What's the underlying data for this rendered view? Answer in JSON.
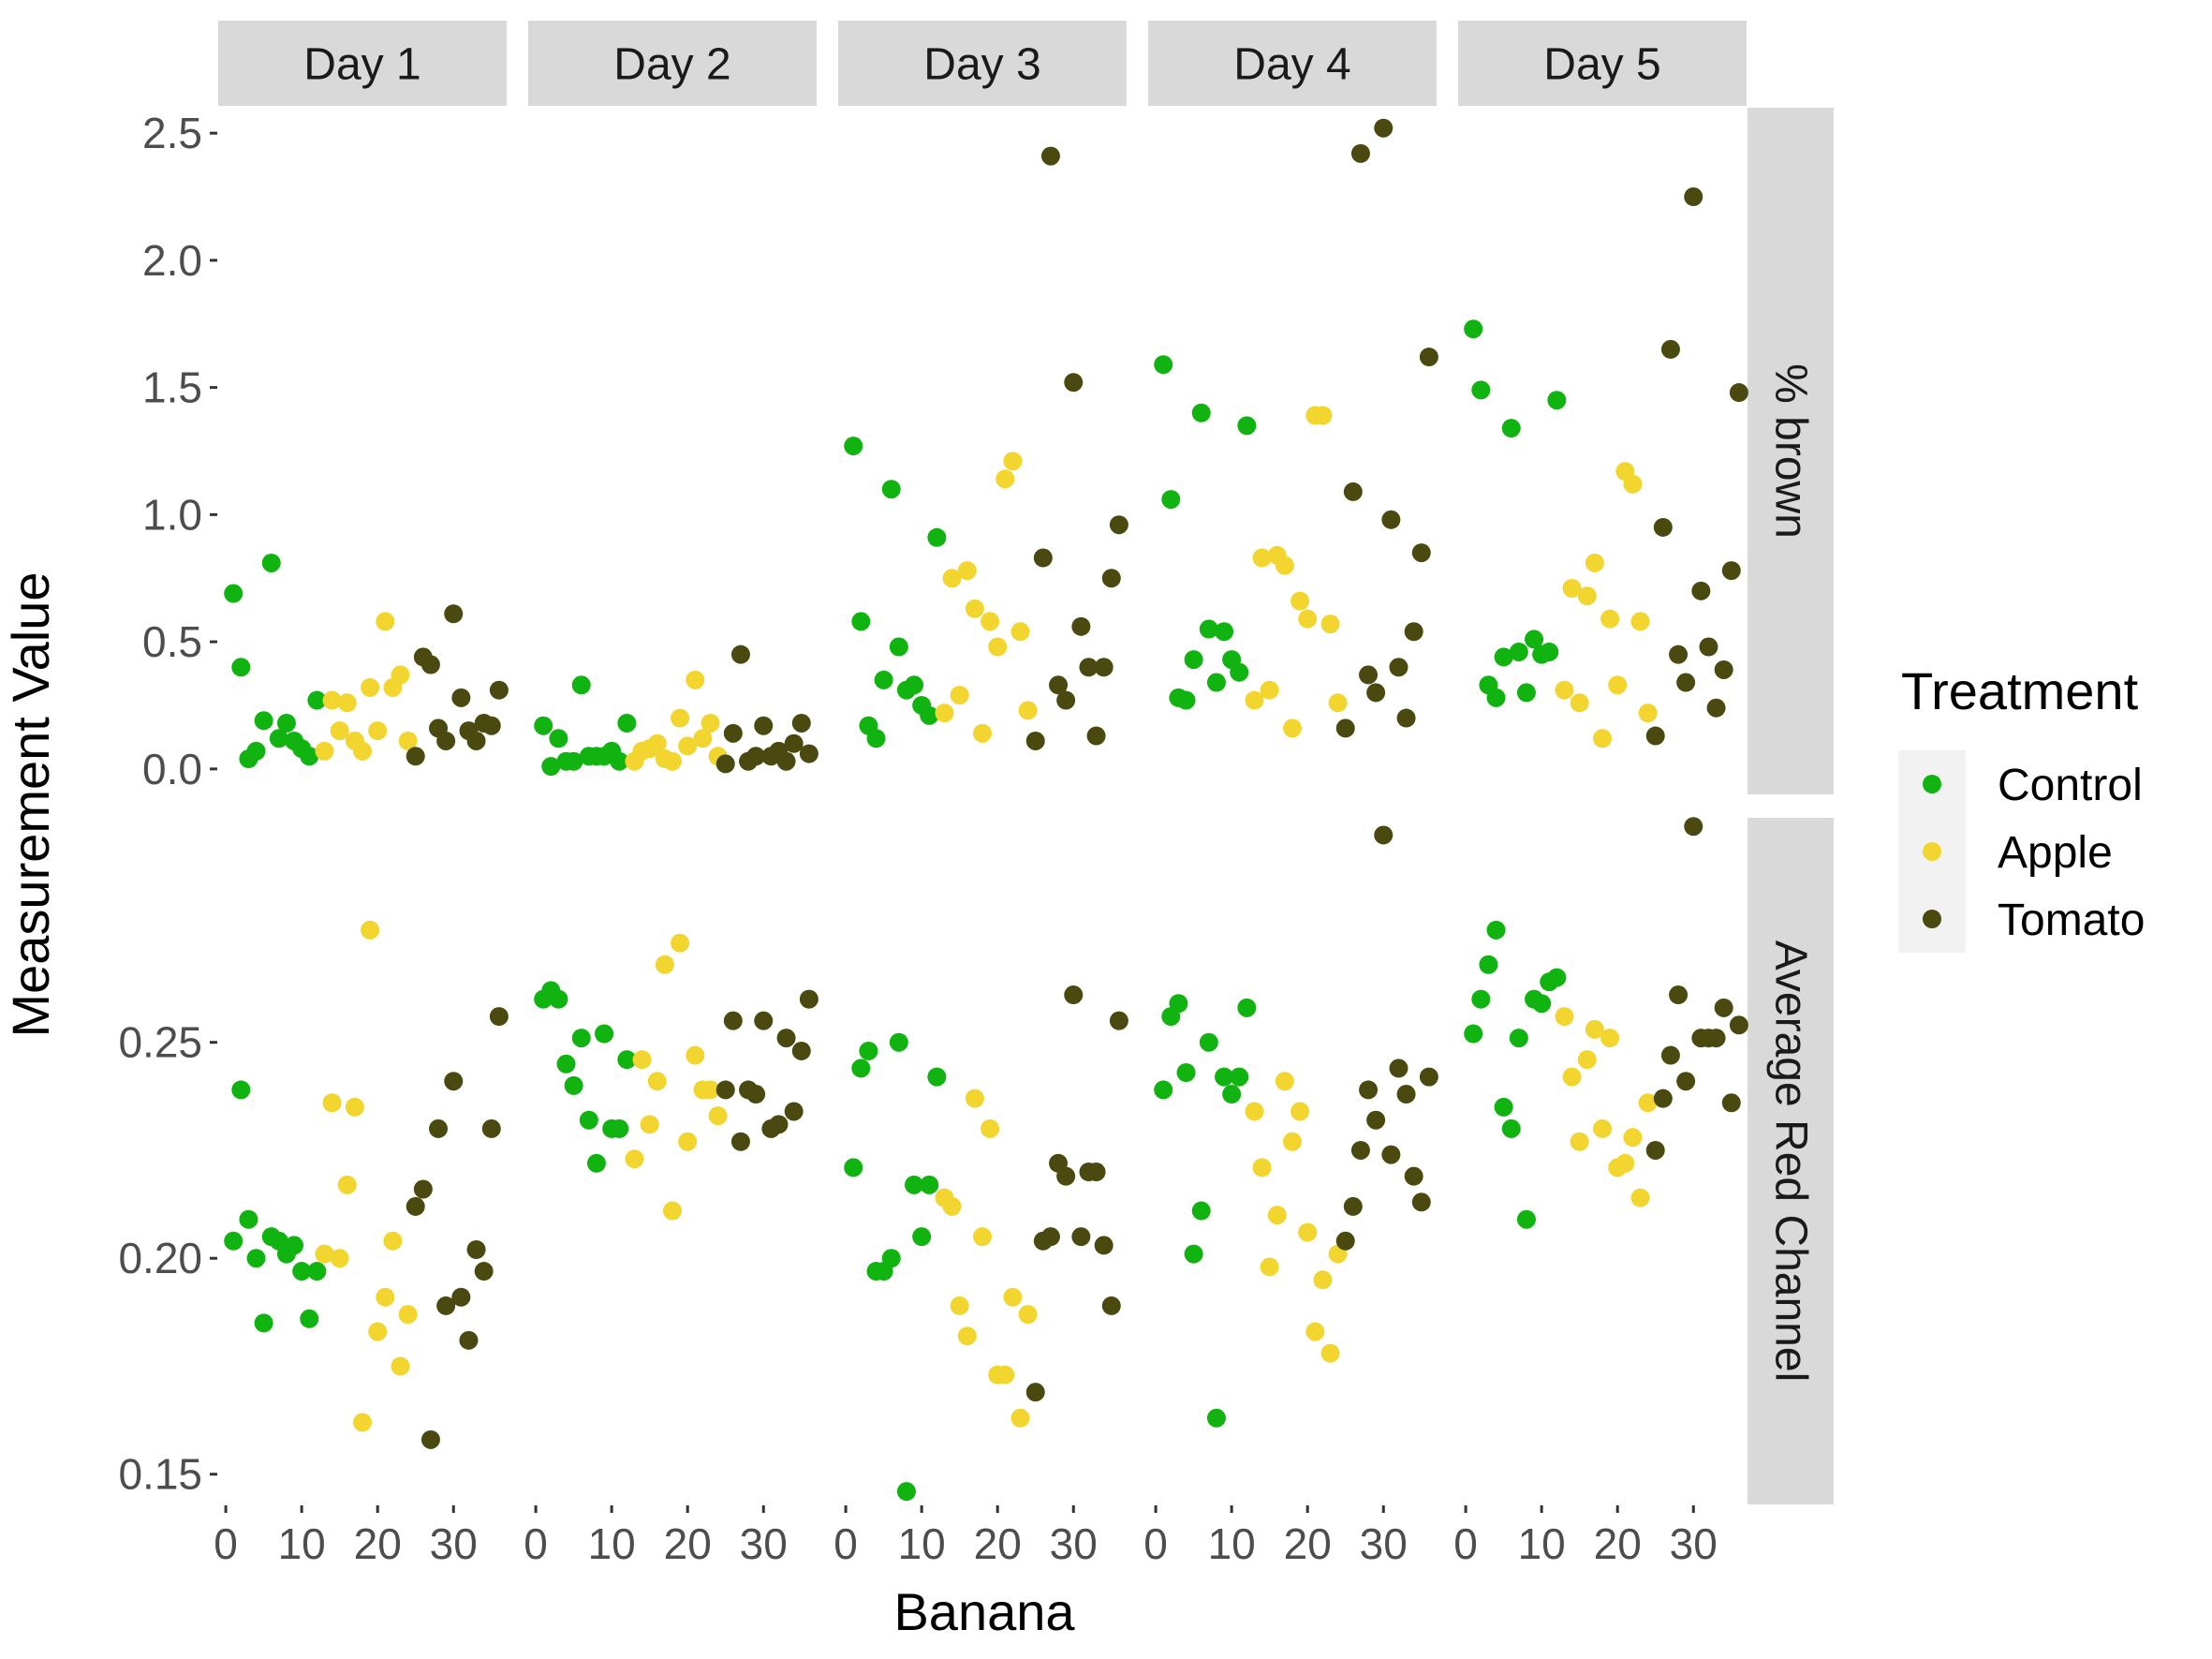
{
  "chart_data": {
    "type": "scatter",
    "xlabel": "Banana",
    "ylabel": "Measurement Value",
    "colors": {
      "Control": "#11b311",
      "Apple": "#f2d52e",
      "Tomato": "#4a4a10"
    },
    "x_ticks": [
      "0",
      "10",
      "20",
      "30"
    ],
    "xlim": [
      -1,
      37
    ],
    "columns": [
      "Day 1",
      "Day 2",
      "Day 3",
      "Day 4",
      "Day 5"
    ],
    "rows": [
      {
        "label": "% brown",
        "ylim": [
          -0.1,
          2.6
        ],
        "ticks": [
          0.0,
          0.5,
          1.0,
          1.5,
          2.0,
          2.5
        ],
        "tick_labels": [
          "0.0",
          "0.5",
          "1.0",
          "1.5",
          "2.0",
          "2.5"
        ]
      },
      {
        "label": "Average Red Channel",
        "ylim": [
          0.143,
          0.302
        ],
        "ticks": [
          0.15,
          0.2,
          0.25
        ],
        "tick_labels": [
          "0.15",
          "0.20",
          "0.25"
        ]
      }
    ],
    "legend": {
      "title": "Treatment",
      "position": "right",
      "entries": [
        "Control",
        "Apple",
        "Tomato"
      ]
    },
    "panels": [
      {
        "row": 0,
        "col": 0,
        "series": [
          {
            "name": "Control",
            "x": [
              1,
              2,
              3,
              4,
              5,
              6,
              7,
              8,
              9,
              10,
              11,
              12
            ],
            "y": [
              0.69,
              0.4,
              0.04,
              0.07,
              0.19,
              0.81,
              0.12,
              0.18,
              0.11,
              0.08,
              0.05,
              0.27
            ]
          },
          {
            "name": "Apple",
            "x": [
              13,
              14,
              15,
              16,
              17,
              18,
              19,
              20,
              21,
              22,
              23,
              24
            ],
            "y": [
              0.07,
              0.27,
              0.15,
              0.26,
              0.11,
              0.07,
              0.32,
              0.15,
              0.58,
              0.32,
              0.37,
              0.11
            ]
          },
          {
            "name": "Tomato",
            "x": [
              25,
              26,
              27,
              28,
              29,
              30,
              31,
              32,
              33,
              34,
              35,
              36
            ],
            "y": [
              0.05,
              0.44,
              0.41,
              0.16,
              0.11,
              0.61,
              0.28,
              0.15,
              0.11,
              0.18,
              0.17,
              0.31
            ]
          }
        ]
      },
      {
        "row": 0,
        "col": 1,
        "series": [
          {
            "name": "Control",
            "x": [
              1,
              2,
              3,
              4,
              5,
              6,
              7,
              8,
              9,
              10,
              11,
              12
            ],
            "y": [
              0.17,
              0.01,
              0.12,
              0.03,
              0.03,
              0.33,
              0.05,
              0.05,
              0.05,
              0.07,
              0.03,
              0.18
            ]
          },
          {
            "name": "Apple",
            "x": [
              13,
              14,
              15,
              16,
              17,
              18,
              19,
              20,
              21,
              22,
              23,
              24
            ],
            "y": [
              0.03,
              0.07,
              0.08,
              0.1,
              0.04,
              0.03,
              0.2,
              0.09,
              0.35,
              0.12,
              0.18,
              0.05
            ]
          },
          {
            "name": "Tomato",
            "x": [
              25,
              26,
              27,
              28,
              29,
              30,
              31,
              32,
              33,
              34,
              35,
              36
            ],
            "y": [
              0.02,
              0.14,
              0.45,
              0.03,
              0.05,
              0.17,
              0.05,
              0.07,
              0.03,
              0.1,
              0.18,
              0.06
            ]
          }
        ]
      },
      {
        "row": 0,
        "col": 2,
        "series": [
          {
            "name": "Control",
            "x": [
              1,
              2,
              3,
              4,
              5,
              6,
              7,
              8,
              9,
              10,
              11,
              12
            ],
            "y": [
              1.27,
              0.58,
              0.17,
              0.12,
              0.35,
              1.1,
              0.48,
              0.31,
              0.33,
              0.25,
              0.21,
              0.91
            ]
          },
          {
            "name": "Apple",
            "x": [
              13,
              14,
              15,
              16,
              17,
              18,
              19,
              20,
              21,
              22,
              23,
              24
            ],
            "y": [
              0.22,
              0.75,
              0.29,
              0.78,
              0.63,
              0.14,
              0.58,
              0.48,
              1.14,
              1.21,
              0.54,
              0.23
            ]
          },
          {
            "name": "Tomato",
            "x": [
              25,
              26,
              27,
              28,
              29,
              30,
              31,
              32,
              33,
              34,
              35,
              36
            ],
            "y": [
              0.11,
              0.83,
              2.41,
              0.33,
              0.27,
              1.52,
              0.56,
              0.4,
              0.13,
              0.4,
              0.75,
              0.96
            ]
          }
        ]
      },
      {
        "row": 0,
        "col": 3,
        "series": [
          {
            "name": "Control",
            "x": [
              1,
              2,
              3,
              4,
              5,
              6,
              7,
              8,
              9,
              10,
              11,
              12
            ],
            "y": [
              1.59,
              1.06,
              0.28,
              0.27,
              0.43,
              1.4,
              0.55,
              0.34,
              0.54,
              0.43,
              0.38,
              1.35
            ]
          },
          {
            "name": "Apple",
            "x": [
              13,
              14,
              15,
              16,
              17,
              18,
              19,
              20,
              21,
              22,
              23,
              24
            ],
            "y": [
              0.27,
              0.83,
              0.31,
              0.84,
              0.8,
              0.16,
              0.66,
              0.59,
              1.39,
              1.39,
              0.57,
              0.26
            ]
          },
          {
            "name": "Tomato",
            "x": [
              25,
              26,
              27,
              28,
              29,
              30,
              31,
              32,
              33,
              34,
              35,
              36
            ],
            "y": [
              0.16,
              1.09,
              2.42,
              0.37,
              0.3,
              2.52,
              0.98,
              0.4,
              0.2,
              0.54,
              0.85,
              1.62
            ]
          }
        ]
      },
      {
        "row": 0,
        "col": 4,
        "series": [
          {
            "name": "Control",
            "x": [
              1,
              2,
              3,
              4,
              5,
              6,
              7,
              8,
              9,
              10,
              11,
              12
            ],
            "y": [
              1.73,
              1.49,
              0.33,
              0.28,
              0.44,
              1.34,
              0.46,
              0.3,
              0.51,
              0.45,
              0.46,
              1.45
            ]
          },
          {
            "name": "Apple",
            "x": [
              13,
              14,
              15,
              16,
              17,
              18,
              19,
              20,
              21,
              22,
              23,
              24
            ],
            "y": [
              0.31,
              0.71,
              0.26,
              0.68,
              0.81,
              0.12,
              0.59,
              0.33,
              1.17,
              1.12,
              0.58,
              0.22
            ]
          },
          {
            "name": "Tomato",
            "x": [
              25,
              26,
              27,
              28,
              29,
              30,
              31,
              32,
              33,
              34,
              35,
              36
            ],
            "y": [
              0.13,
              0.95,
              1.65,
              0.45,
              0.34,
              2.25,
              0.7,
              0.48,
              0.24,
              0.39,
              0.78,
              1.48
            ]
          }
        ]
      },
      {
        "row": 1,
        "col": 0,
        "series": [
          {
            "name": "Control",
            "x": [
              1,
              2,
              3,
              4,
              5,
              6,
              7,
              8,
              9,
              10,
              11,
              12
            ],
            "y": [
              0.204,
              0.239,
              0.209,
              0.2,
              0.185,
              0.205,
              0.204,
              0.201,
              0.203,
              0.197,
              0.186,
              0.197
            ]
          },
          {
            "name": "Apple",
            "x": [
              13,
              14,
              15,
              16,
              17,
              18,
              19,
              20,
              21,
              22,
              23,
              24
            ],
            "y": [
              0.201,
              0.236,
              0.2,
              0.217,
              0.235,
              0.162,
              0.276,
              0.183,
              0.191,
              0.204,
              0.175,
              0.187
            ]
          },
          {
            "name": "Tomato",
            "x": [
              25,
              26,
              27,
              28,
              29,
              30,
              31,
              32,
              33,
              34,
              35,
              36
            ],
            "y": [
              0.212,
              0.216,
              0.158,
              0.23,
              0.189,
              0.241,
              0.191,
              0.181,
              0.202,
              0.197,
              0.23,
              0.256
            ]
          }
        ]
      },
      {
        "row": 1,
        "col": 1,
        "series": [
          {
            "name": "Control",
            "x": [
              1,
              2,
              3,
              4,
              5,
              6,
              7,
              8,
              9,
              10,
              11,
              12
            ],
            "y": [
              0.26,
              0.262,
              0.26,
              0.245,
              0.24,
              0.251,
              0.232,
              0.222,
              0.252,
              0.23,
              0.23,
              0.246
            ]
          },
          {
            "name": "Apple",
            "x": [
              13,
              14,
              15,
              16,
              17,
              18,
              19,
              20,
              21,
              22,
              23,
              24
            ],
            "y": [
              0.223,
              0.246,
              0.231,
              0.241,
              0.268,
              0.211,
              0.273,
              0.227,
              0.247,
              0.239,
              0.239,
              0.233
            ]
          },
          {
            "name": "Tomato",
            "x": [
              25,
              26,
              27,
              28,
              29,
              30,
              31,
              32,
              33,
              34,
              35,
              36
            ],
            "y": [
              0.239,
              0.255,
              0.227,
              0.239,
              0.238,
              0.255,
              0.23,
              0.231,
              0.251,
              0.234,
              0.248,
              0.26
            ]
          }
        ]
      },
      {
        "row": 1,
        "col": 2,
        "series": [
          {
            "name": "Control",
            "x": [
              1,
              2,
              3,
              4,
              5,
              6,
              7,
              8,
              9,
              10,
              11,
              12
            ],
            "y": [
              0.221,
              0.244,
              0.248,
              0.197,
              0.197,
              0.2,
              0.25,
              0.146,
              0.217,
              0.205,
              0.217,
              0.242
            ]
          },
          {
            "name": "Apple",
            "x": [
              13,
              14,
              15,
              16,
              17,
              18,
              19,
              20,
              21,
              22,
              23,
              24
            ],
            "y": [
              0.214,
              0.212,
              0.189,
              0.182,
              0.237,
              0.205,
              0.23,
              0.173,
              0.173,
              0.191,
              0.163,
              0.187
            ]
          },
          {
            "name": "Tomato",
            "x": [
              25,
              26,
              27,
              28,
              29,
              30,
              31,
              32,
              33,
              34,
              35,
              36
            ],
            "y": [
              0.169,
              0.204,
              0.205,
              0.222,
              0.219,
              0.261,
              0.205,
              0.22,
              0.22,
              0.203,
              0.189,
              0.255
            ]
          }
        ]
      },
      {
        "row": 1,
        "col": 3,
        "series": [
          {
            "name": "Control",
            "x": [
              1,
              2,
              3,
              4,
              5,
              6,
              7,
              8,
              9,
              10,
              11,
              12
            ],
            "y": [
              0.239,
              0.256,
              0.259,
              0.243,
              0.201,
              0.211,
              0.25,
              0.163,
              0.242,
              0.238,
              0.242,
              0.258
            ]
          },
          {
            "name": "Apple",
            "x": [
              13,
              14,
              15,
              16,
              17,
              18,
              19,
              20,
              21,
              22,
              23,
              24
            ],
            "y": [
              0.234,
              0.221,
              0.198,
              0.21,
              0.241,
              0.227,
              0.234,
              0.206,
              0.183,
              0.195,
              0.178,
              0.201
            ]
          },
          {
            "name": "Tomato",
            "x": [
              25,
              26,
              27,
              28,
              29,
              30,
              31,
              32,
              33,
              34,
              35,
              36
            ],
            "y": [
              0.204,
              0.212,
              0.225,
              0.239,
              0.232,
              0.298,
              0.224,
              0.244,
              0.238,
              0.219,
              0.213,
              0.242
            ]
          }
        ]
      },
      {
        "row": 1,
        "col": 4,
        "series": [
          {
            "name": "Control",
            "x": [
              1,
              2,
              3,
              4,
              5,
              6,
              7,
              8,
              9,
              10,
              11,
              12
            ],
            "y": [
              0.252,
              0.26,
              0.268,
              0.276,
              0.235,
              0.23,
              0.251,
              0.209,
              0.26,
              0.259,
              0.264,
              0.265
            ]
          },
          {
            "name": "Apple",
            "x": [
              13,
              14,
              15,
              16,
              17,
              18,
              19,
              20,
              21,
              22,
              23,
              24
            ],
            "y": [
              0.256,
              0.242,
              0.227,
              0.246,
              0.253,
              0.23,
              0.251,
              0.221,
              0.222,
              0.228,
              0.214,
              0.236
            ]
          },
          {
            "name": "Tomato",
            "x": [
              25,
              26,
              27,
              28,
              29,
              30,
              31,
              32,
              33,
              34,
              35,
              36
            ],
            "y": [
              0.225,
              0.237,
              0.247,
              0.261,
              0.241,
              0.3,
              0.251,
              0.251,
              0.251,
              0.258,
              0.236,
              0.254
            ]
          }
        ]
      }
    ]
  }
}
